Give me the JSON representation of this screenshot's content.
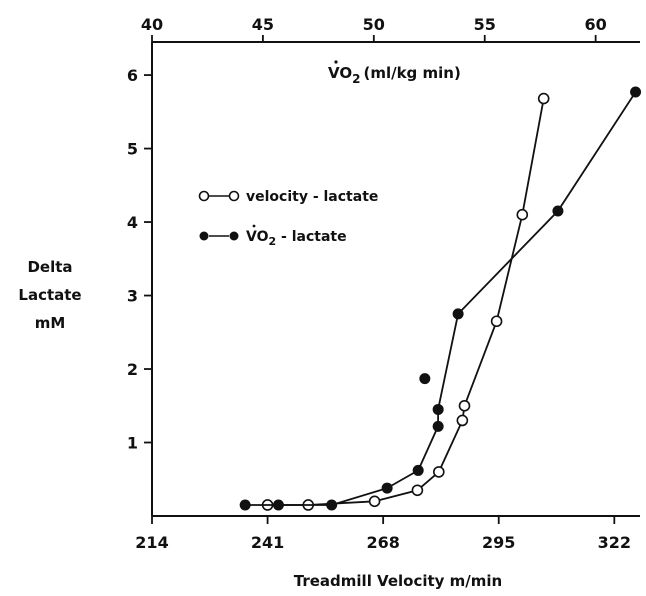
{
  "chart_data": {
    "type": "scatter",
    "title": "",
    "xlabel": "Treadmill Velocity m/min",
    "x2label": "VO2 (ml/kg min)",
    "ylabel": [
      "Delta",
      "Lactate",
      "mM"
    ],
    "xlim": [
      214,
      328
    ],
    "x2lim": [
      40,
      62
    ],
    "ylim": [
      0,
      6.45
    ],
    "x_ticks": [
      214,
      241,
      268,
      295,
      322
    ],
    "x2_ticks": [
      40,
      45,
      50,
      55,
      60
    ],
    "y_ticks": [
      1,
      2,
      3,
      4,
      5,
      6
    ],
    "grid": false,
    "legend_position": "upper-left",
    "series": [
      {
        "name": "velocity - lactate",
        "marker": "open-circle",
        "axis": "bottom",
        "x": [
          241,
          250.5,
          266,
          276,
          281,
          286.5,
          287,
          294.5,
          300.5,
          305.5
        ],
        "y": [
          0.15,
          0.15,
          0.2,
          0.35,
          0.6,
          1.3,
          1.5,
          2.65,
          4.1,
          5.68
        ]
      },
      {
        "name": "VO2 - lactate",
        "marker": "filled-circle",
        "axis": "top",
        "x": [
          44.2,
          45.7,
          48.1,
          50.6,
          52.0,
          52.9,
          52.9,
          52.3,
          53.8,
          58.3,
          61.8
        ],
        "y": [
          0.15,
          0.15,
          0.15,
          0.38,
          0.62,
          1.22,
          1.45,
          1.87,
          2.75,
          4.15,
          5.77
        ]
      }
    ]
  },
  "legend": {
    "entry1": "velocity - lactate",
    "entry2_main": "VO",
    "entry2_sub": "2",
    "entry2_rest": " - lactate"
  },
  "top_axis_label": {
    "main": "VO",
    "sub": "2",
    "rest": "(ml/kg min)"
  },
  "colors": {
    "ink": "#111111",
    "background": "#ffffff"
  }
}
